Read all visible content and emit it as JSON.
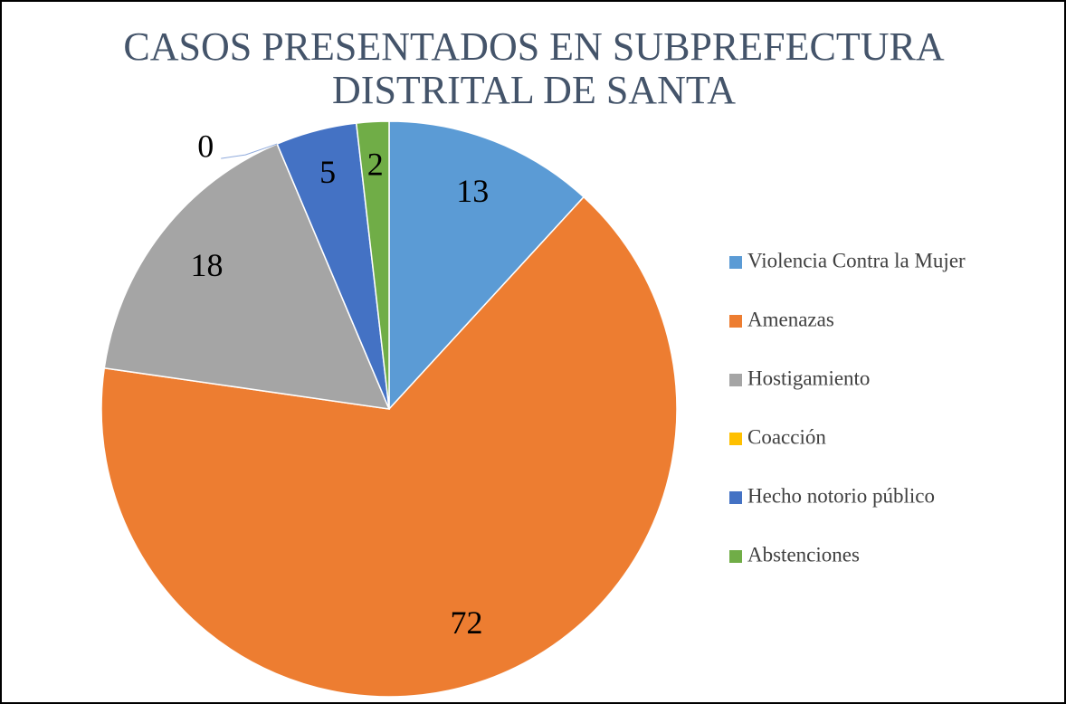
{
  "chart_data": {
    "type": "pie",
    "title": [
      "CASOS PRESENTADOS EN SUBPREFECTURA",
      "DISTRITAL DE SANTA"
    ],
    "categories": [
      "Violencia Contra la Mujer",
      "Amenazas",
      "Hostigamiento",
      "Coacción",
      "Hecho notorio público",
      "Abstenciones"
    ],
    "values": [
      13,
      72,
      18,
      0,
      5,
      2
    ],
    "colors": [
      "#5b9bd5",
      "#ed7d31",
      "#a5a5a5",
      "#ffc000",
      "#4472c4",
      "#70ad47"
    ],
    "legend": "right"
  }
}
